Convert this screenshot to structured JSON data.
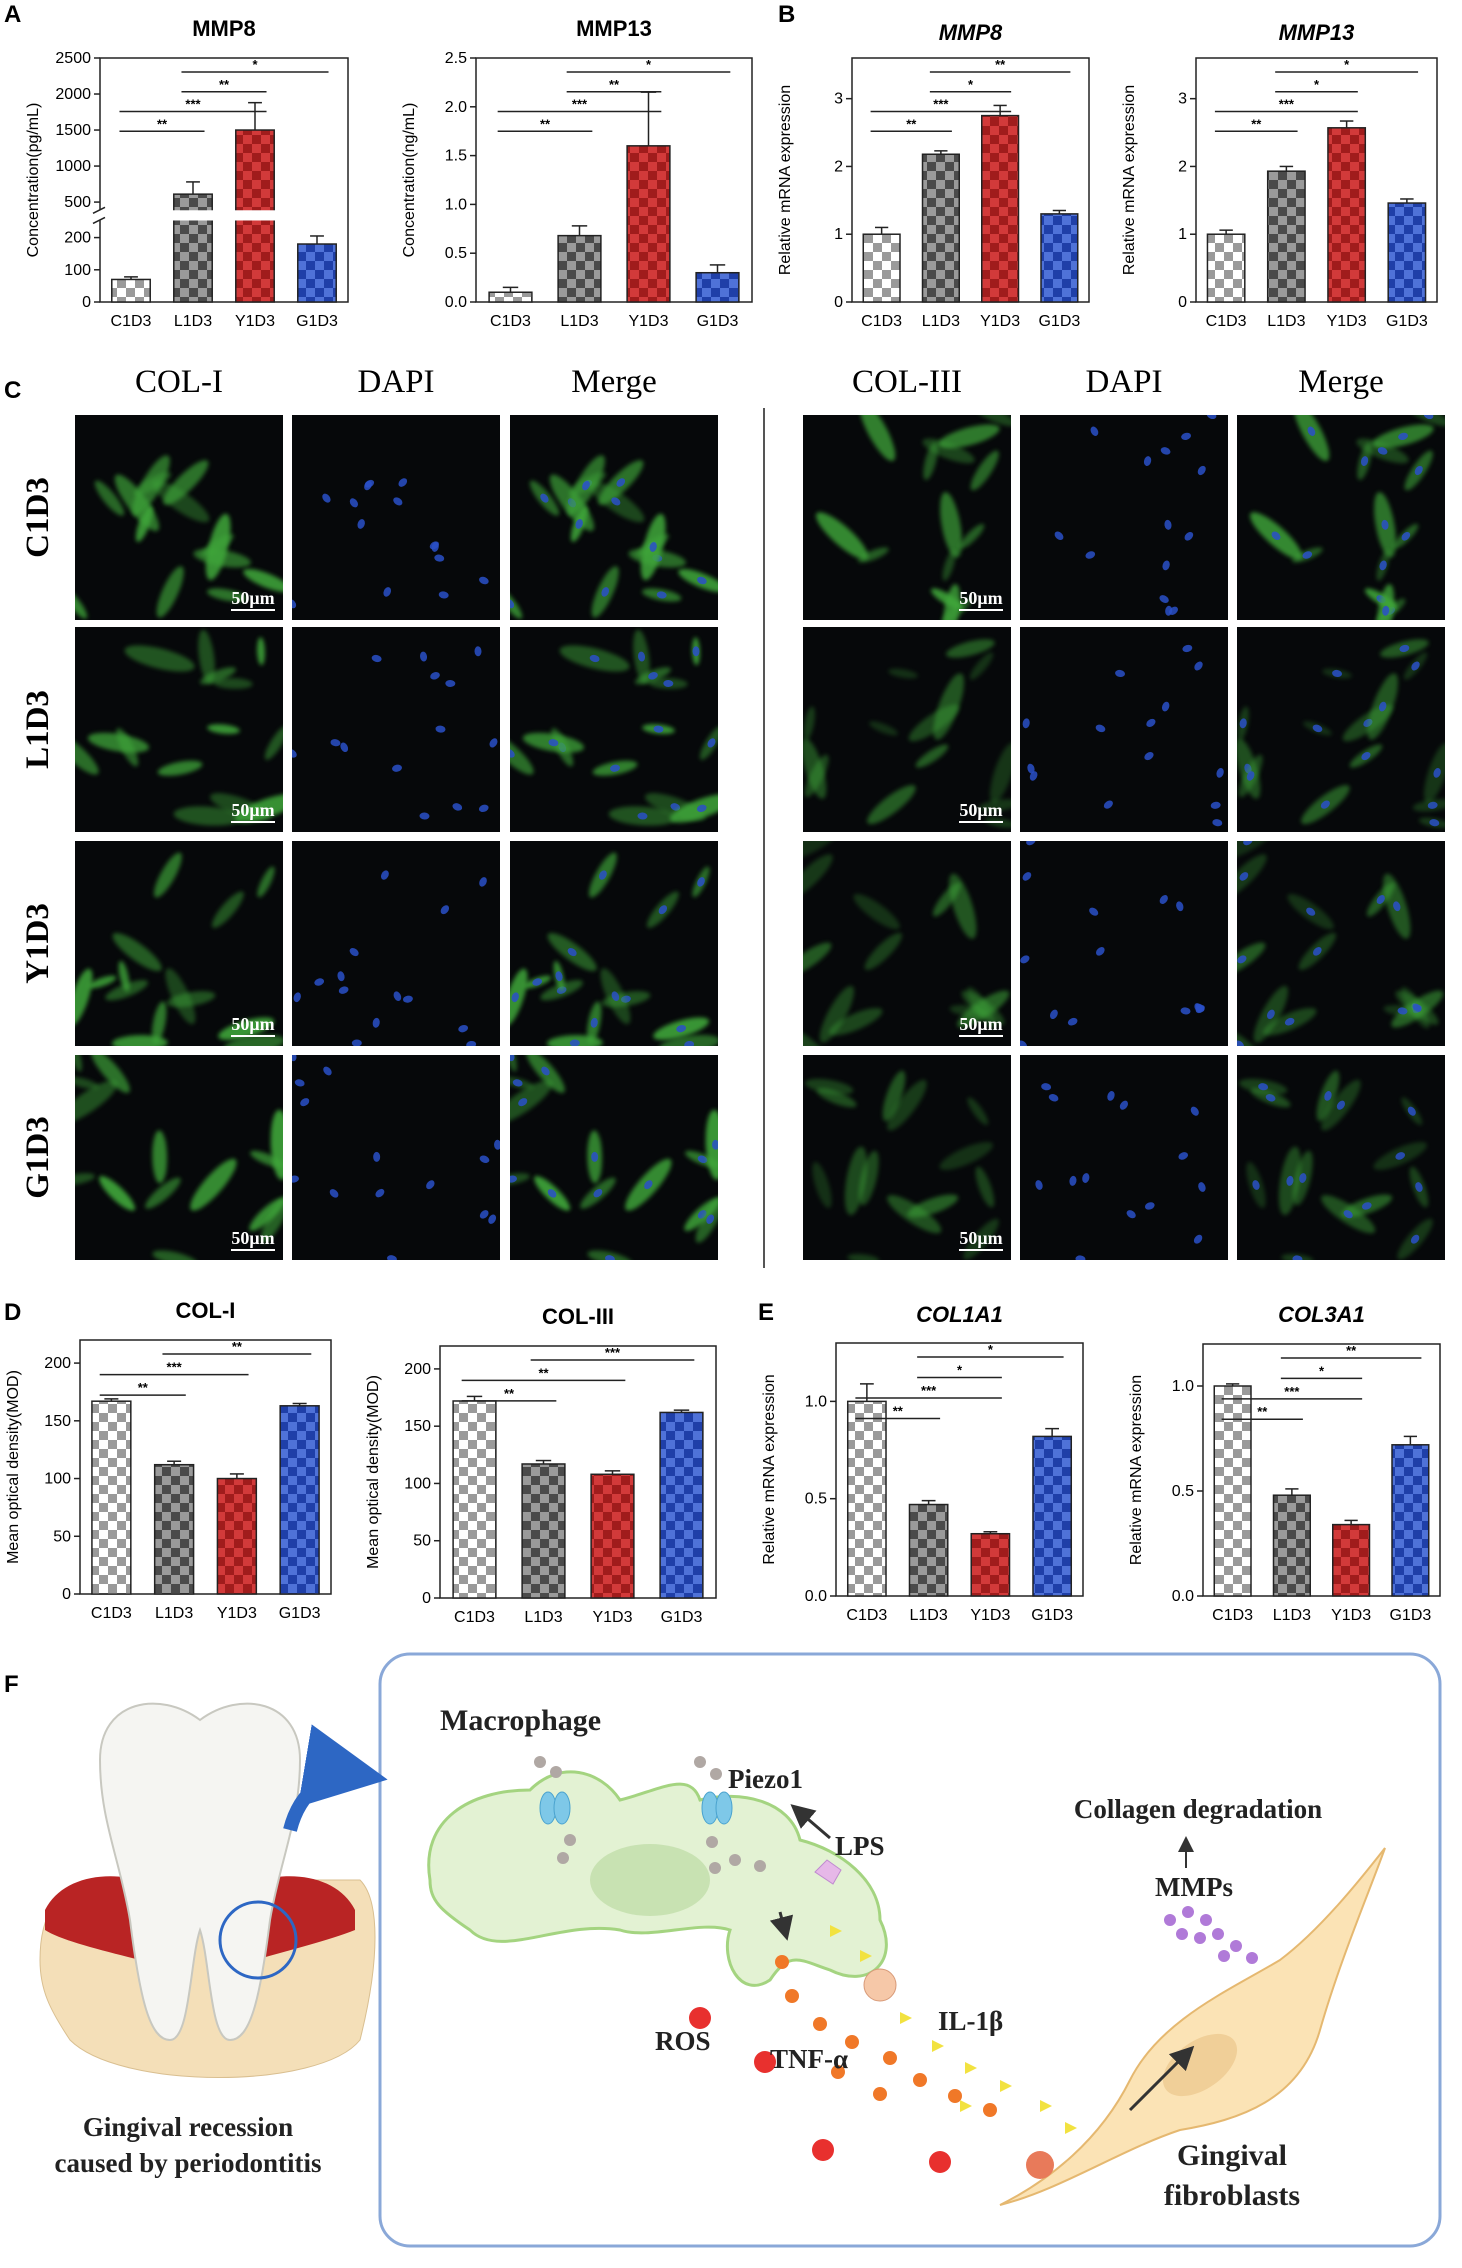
{
  "panel_labels": [
    "A",
    "B",
    "C",
    "D",
    "E",
    "F"
  ],
  "chart_data": [
    {
      "type": "bar",
      "title": "MMP8",
      "ylabel": "Concentration(pg/mL)",
      "categories": [
        "C1D3",
        "L1D3",
        "Y1D3",
        "G1D3"
      ],
      "values": [
        70,
        610,
        1500,
        180
      ],
      "errors": [
        8,
        170,
        380,
        25
      ],
      "colors": [
        [
          "#ffffff",
          "#9a9a9a"
        ],
        [
          "#4a4a4a",
          "#9a9a9a"
        ],
        [
          "#a01c1c",
          "#d23a3a"
        ],
        [
          "#1f3fa8",
          "#4f72d8"
        ]
      ],
      "ylim": [
        0,
        2500
      ],
      "yticks": [
        0,
        100,
        200,
        500,
        1000,
        1500,
        2000,
        2500
      ],
      "ybreak": [
        250,
        400
      ],
      "significance": [
        {
          "label": "**",
          "between": [
            0,
            1
          ]
        },
        {
          "label": "***",
          "between": [
            0,
            2
          ]
        },
        {
          "label": "**",
          "between": [
            1,
            2
          ]
        },
        {
          "label": "*",
          "between": [
            1,
            3
          ]
        }
      ]
    },
    {
      "type": "bar",
      "title": "MMP13",
      "ylabel": "Concentration(ng/mL)",
      "categories": [
        "C1D3",
        "L1D3",
        "Y1D3",
        "G1D3"
      ],
      "values": [
        0.1,
        0.68,
        1.6,
        0.3
      ],
      "errors": [
        0.05,
        0.1,
        0.55,
        0.08
      ],
      "colors": [
        [
          "#ffffff",
          "#9a9a9a"
        ],
        [
          "#4a4a4a",
          "#9a9a9a"
        ],
        [
          "#a01c1c",
          "#d23a3a"
        ],
        [
          "#1f3fa8",
          "#4f72d8"
        ]
      ],
      "ylim": [
        0,
        2.5
      ],
      "yticks": [
        {
          "value": 0,
          "label": "0.0"
        },
        0.5,
        {
          "value": 1,
          "label": "1.0"
        },
        1.5,
        {
          "value": 2,
          "label": "2.0"
        },
        2.5
      ],
      "significance": [
        {
          "label": "**",
          "between": [
            0,
            1
          ]
        },
        {
          "label": "***",
          "between": [
            0,
            2
          ]
        },
        {
          "label": "**",
          "between": [
            1,
            2
          ]
        },
        {
          "label": "*",
          "between": [
            1,
            3
          ]
        }
      ]
    },
    {
      "type": "bar",
      "title": "MMP8",
      "title_style": "italic",
      "ylabel": "Relative mRNA expression",
      "categories": [
        "C1D3",
        "L1D3",
        "Y1D3",
        "G1D3"
      ],
      "values": [
        1.0,
        2.18,
        2.75,
        1.3
      ],
      "errors": [
        0.1,
        0.05,
        0.15,
        0.05
      ],
      "colors": [
        [
          "#ffffff",
          "#9a9a9a"
        ],
        [
          "#4a4a4a",
          "#9a9a9a"
        ],
        [
          "#a01c1c",
          "#d23a3a"
        ],
        [
          "#1f3fa8",
          "#4f72d8"
        ]
      ],
      "ylim": [
        0,
        3.6
      ],
      "yticks": [
        0,
        1,
        2,
        3
      ],
      "significance": [
        {
          "label": "**",
          "between": [
            0,
            1
          ]
        },
        {
          "label": "***",
          "between": [
            0,
            2
          ]
        },
        {
          "label": "*",
          "between": [
            1,
            2
          ]
        },
        {
          "label": "**",
          "between": [
            1,
            3
          ]
        }
      ]
    },
    {
      "type": "bar",
      "title": "MMP13",
      "title_style": "italic",
      "ylabel": "Relative mRNA expression",
      "categories": [
        "C1D3",
        "L1D3",
        "Y1D3",
        "G1D3"
      ],
      "values": [
        1.0,
        1.93,
        2.57,
        1.46
      ],
      "errors": [
        0.06,
        0.07,
        0.1,
        0.06
      ],
      "colors": [
        [
          "#ffffff",
          "#9a9a9a"
        ],
        [
          "#4a4a4a",
          "#9a9a9a"
        ],
        [
          "#a01c1c",
          "#d23a3a"
        ],
        [
          "#1f3fa8",
          "#4f72d8"
        ]
      ],
      "ylim": [
        0,
        3.6
      ],
      "yticks": [
        0,
        1,
        2,
        3
      ],
      "significance": [
        {
          "label": "**",
          "between": [
            0,
            1
          ]
        },
        {
          "label": "***",
          "between": [
            0,
            2
          ]
        },
        {
          "label": "*",
          "between": [
            1,
            2
          ]
        },
        {
          "label": "*",
          "between": [
            1,
            3
          ]
        }
      ]
    },
    {
      "type": "bar",
      "title": "COL-I",
      "ylabel": "Mean optical density(MOD)",
      "categories": [
        "C1D3",
        "L1D3",
        "Y1D3",
        "G1D3"
      ],
      "values": [
        167,
        112,
        100,
        163
      ],
      "errors": [
        2,
        3,
        4,
        2
      ],
      "colors": [
        [
          "#ffffff",
          "#9a9a9a"
        ],
        [
          "#4a4a4a",
          "#9a9a9a"
        ],
        [
          "#a01c1c",
          "#d23a3a"
        ],
        [
          "#1f3fa8",
          "#4f72d8"
        ]
      ],
      "ylim": [
        0,
        220
      ],
      "yticks": [
        0,
        50,
        100,
        150,
        200
      ],
      "significance": [
        {
          "label": "**",
          "between": [
            0,
            1
          ]
        },
        {
          "label": "***",
          "between": [
            0,
            2
          ]
        },
        {
          "label": "**",
          "between": [
            1,
            3
          ]
        }
      ]
    },
    {
      "type": "bar",
      "title": "COL-III",
      "ylabel": "Mean optical density(MOD)",
      "categories": [
        "C1D3",
        "L1D3",
        "Y1D3",
        "G1D3"
      ],
      "values": [
        172,
        117,
        108,
        162
      ],
      "errors": [
        4,
        3,
        3,
        2
      ],
      "colors": [
        [
          "#ffffff",
          "#9a9a9a"
        ],
        [
          "#4a4a4a",
          "#9a9a9a"
        ],
        [
          "#a01c1c",
          "#d23a3a"
        ],
        [
          "#1f3fa8",
          "#4f72d8"
        ]
      ],
      "ylim": [
        0,
        220
      ],
      "yticks": [
        0,
        50,
        100,
        150,
        200
      ],
      "significance": [
        {
          "label": "**",
          "between": [
            0,
            1
          ]
        },
        {
          "label": "**",
          "between": [
            0,
            2
          ]
        },
        {
          "label": "***",
          "between": [
            1,
            3
          ]
        }
      ]
    },
    {
      "type": "bar",
      "title": "COL1A1",
      "title_style": "italic",
      "ylabel": "Relative mRNA expression",
      "categories": [
        "C1D3",
        "L1D3",
        "Y1D3",
        "G1D3"
      ],
      "values": [
        1.0,
        0.47,
        0.32,
        0.82
      ],
      "errors": [
        0.09,
        0.02,
        0.01,
        0.04
      ],
      "colors": [
        [
          "#ffffff",
          "#9a9a9a"
        ],
        [
          "#4a4a4a",
          "#9a9a9a"
        ],
        [
          "#a01c1c",
          "#d23a3a"
        ],
        [
          "#1f3fa8",
          "#4f72d8"
        ]
      ],
      "ylim": [
        0,
        1.3
      ],
      "yticks": [
        {
          "value": 0,
          "label": "0.0"
        },
        0.5,
        {
          "value": 1,
          "label": "1.0"
        }
      ],
      "significance": [
        {
          "label": "**",
          "between": [
            0,
            1
          ]
        },
        {
          "label": "***",
          "between": [
            0,
            2
          ]
        },
        {
          "label": "*",
          "between": [
            1,
            2
          ]
        },
        {
          "label": "*",
          "between": [
            1,
            3
          ]
        }
      ]
    },
    {
      "type": "bar",
      "title": "COL3A1",
      "title_style": "italic",
      "ylabel": "Relative mRNA expression",
      "categories": [
        "C1D3",
        "L1D3",
        "Y1D3",
        "G1D3"
      ],
      "values": [
        1.0,
        0.48,
        0.34,
        0.72
      ],
      "errors": [
        0.01,
        0.03,
        0.02,
        0.04
      ],
      "colors": [
        [
          "#ffffff",
          "#9a9a9a"
        ],
        [
          "#4a4a4a",
          "#9a9a9a"
        ],
        [
          "#a01c1c",
          "#d23a3a"
        ],
        [
          "#1f3fa8",
          "#4f72d8"
        ]
      ],
      "ylim": [
        0,
        1.2
      ],
      "yticks": [
        {
          "value": 0,
          "label": "0.0"
        },
        0.5,
        {
          "value": 1,
          "label": "1.0"
        }
      ],
      "significance": [
        {
          "label": "**",
          "between": [
            0,
            1
          ]
        },
        {
          "label": "***",
          "between": [
            0,
            2
          ]
        },
        {
          "label": "*",
          "between": [
            1,
            2
          ]
        },
        {
          "label": "**",
          "between": [
            1,
            3
          ]
        }
      ]
    }
  ],
  "microscopy": {
    "left_columns": [
      "COL-I",
      "DAPI",
      "Merge"
    ],
    "right_columns": [
      "COL-III",
      "DAPI",
      "Merge"
    ],
    "rows": [
      "C1D3",
      "L1D3",
      "Y1D3",
      "G1D3"
    ],
    "scale_bar": "50μm"
  },
  "diagram": {
    "macrophage": "Macrophage",
    "piezo1": "Piezo1",
    "lps": "LPS",
    "ros": "ROS",
    "tnf": "TNF-α",
    "il1b": "IL-1β",
    "collagen": "Collagen degradation",
    "mmps": "MMPs",
    "fibroblasts": [
      "Gingival",
      "fibroblasts"
    ],
    "recession": [
      "Gingival recession",
      "caused by periodontitis"
    ]
  }
}
